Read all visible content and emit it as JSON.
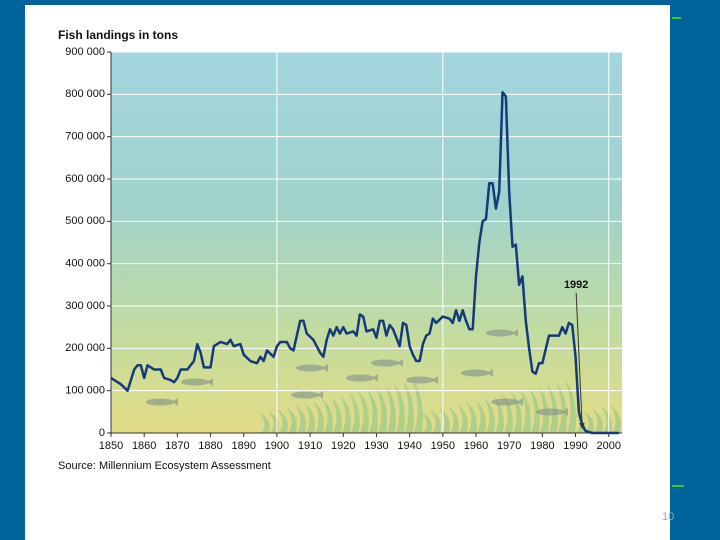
{
  "chart_data": {
    "type": "line",
    "title": "Fish landings in tons",
    "source": "Source: Millennium Ecosystem Assessment",
    "annotation": {
      "text": "1992",
      "x": 1992
    },
    "slide_number": "10",
    "x": [
      1850,
      1853,
      1855,
      1857,
      1858,
      1859,
      1860,
      1861,
      1863,
      1865,
      1866,
      1868,
      1869,
      1870,
      1871,
      1873,
      1875,
      1876,
      1877,
      1878,
      1880,
      1881,
      1883,
      1885,
      1886,
      1887,
      1889,
      1890,
      1892,
      1894,
      1895,
      1896,
      1897,
      1899,
      1900,
      1901,
      1903,
      1904,
      1905,
      1907,
      1908,
      1909,
      1911,
      1913,
      1914,
      1915,
      1916,
      1917,
      1918,
      1919,
      1920,
      1921,
      1923,
      1924,
      1925,
      1926,
      1927,
      1929,
      1930,
      1931,
      1932,
      1933,
      1934,
      1935,
      1937,
      1938,
      1939,
      1940,
      1941,
      1942,
      1943,
      1944,
      1945,
      1946,
      1947,
      1948,
      1950,
      1952,
      1953,
      1954,
      1955,
      1956,
      1957,
      1958,
      1959,
      1960,
      1961,
      1962,
      1963,
      1964,
      1965,
      1966,
      1967,
      1968,
      1969,
      1970,
      1971,
      1972,
      1973,
      1974,
      1975,
      1976,
      1977,
      1978,
      1979,
      1980,
      1982,
      1985,
      1986,
      1987,
      1988,
      1989,
      1990,
      1991,
      1992,
      1993,
      1995,
      2000,
      2003
    ],
    "series": [
      {
        "name": "Fish landings",
        "color": "#16397a",
        "values": [
          130000,
          115000,
          100000,
          150000,
          160000,
          160000,
          130000,
          160000,
          150000,
          150000,
          130000,
          125000,
          120000,
          130000,
          150000,
          150000,
          170000,
          210000,
          190000,
          155000,
          155000,
          205000,
          215000,
          210000,
          220000,
          205000,
          210000,
          185000,
          170000,
          165000,
          180000,
          170000,
          195000,
          180000,
          205000,
          215000,
          215000,
          200000,
          195000,
          265000,
          265000,
          235000,
          220000,
          190000,
          180000,
          220000,
          245000,
          230000,
          250000,
          235000,
          250000,
          235000,
          240000,
          230000,
          280000,
          275000,
          240000,
          245000,
          225000,
          265000,
          265000,
          230000,
          255000,
          245000,
          205000,
          260000,
          255000,
          205000,
          185000,
          170000,
          170000,
          210000,
          230000,
          235000,
          270000,
          260000,
          275000,
          270000,
          260000,
          290000,
          265000,
          290000,
          265000,
          245000,
          245000,
          370000,
          450000,
          500000,
          505000,
          590000,
          590000,
          530000,
          570000,
          805000,
          795000,
          570000,
          440000,
          445000,
          350000,
          370000,
          265000,
          200000,
          145000,
          140000,
          165000,
          165000,
          230000,
          230000,
          250000,
          235000,
          260000,
          255000,
          180000,
          50000,
          20000,
          5000,
          0,
          0,
          0
        ]
      }
    ],
    "xlim": [
      1850,
      2004
    ],
    "xticks": [
      1850,
      1860,
      1870,
      1880,
      1890,
      1900,
      1910,
      1920,
      1930,
      1940,
      1950,
      1960,
      1970,
      1980,
      1990,
      2000
    ],
    "ylim": [
      0,
      900000
    ],
    "yticks": [
      0,
      {
        "value": 100000,
        "label": "100 000"
      },
      {
        "value": 200000,
        "label": "200 000"
      },
      {
        "value": 300000,
        "label": "300 000"
      },
      {
        "value": 400000,
        "label": "400 000"
      },
      {
        "value": 500000,
        "label": "500 000"
      },
      {
        "value": 600000,
        "label": "600 000"
      },
      {
        "value": 700000,
        "label": "700 000"
      },
      {
        "value": 800000,
        "label": "800 000"
      },
      {
        "value": 900000,
        "label": "900 000"
      }
    ],
    "grid": true
  }
}
